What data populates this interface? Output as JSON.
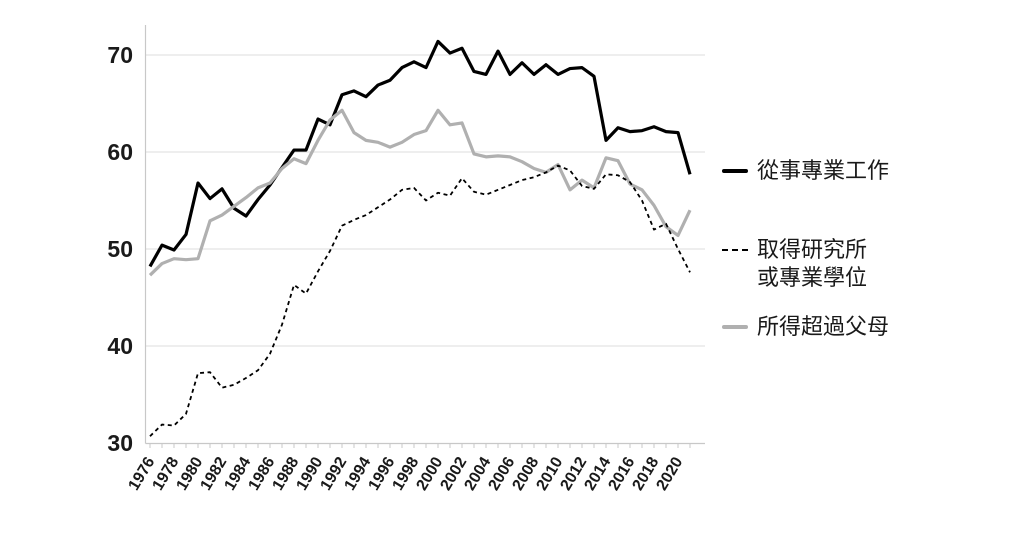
{
  "chart_data": {
    "type": "line",
    "title": "",
    "xlabel": "",
    "ylabel": "",
    "x": [
      1976,
      1977,
      1978,
      1979,
      1980,
      1981,
      1982,
      1983,
      1984,
      1985,
      1986,
      1987,
      1988,
      1989,
      1990,
      1991,
      1992,
      1993,
      1994,
      1995,
      1996,
      1997,
      1998,
      1999,
      2000,
      2001,
      2002,
      2003,
      2004,
      2005,
      2006,
      2007,
      2008,
      2009,
      2010,
      2011,
      2012,
      2013,
      2014,
      2015,
      2016,
      2017,
      2018,
      2019,
      2020,
      2021
    ],
    "x_tick_labels": [
      "1976",
      "1978",
      "1980",
      "1982",
      "1984",
      "1986",
      "1988",
      "1990",
      "1992",
      "1994",
      "1996",
      "1998",
      "2000",
      "2002",
      "2004",
      "2006",
      "2008",
      "2010",
      "2012",
      "2014",
      "2016",
      "2018",
      "2020"
    ],
    "y_ticks": [
      30,
      40,
      50,
      60,
      70
    ],
    "ylim": [
      30,
      73
    ],
    "grid": "horizontal",
    "legend_position": "right",
    "series": [
      {
        "name": "從事專業工作",
        "line": "solid",
        "color": "#000000",
        "width": 3.2,
        "values": [
          48.2,
          50.4,
          49.9,
          51.5,
          56.8,
          55.2,
          56.2,
          54.2,
          53.4,
          55.1,
          56.6,
          58.4,
          60.2,
          60.2,
          63.4,
          62.8,
          65.9,
          66.3,
          65.7,
          66.9,
          67.4,
          68.7,
          69.3,
          68.7,
          71.4,
          70.2,
          70.7,
          68.3,
          68.0,
          70.4,
          68.0,
          69.2,
          68.0,
          69.0,
          68.0,
          68.6,
          68.7,
          67.8,
          61.2,
          62.5,
          62.1,
          62.2,
          62.6,
          62.1,
          62.0,
          57.7
        ]
      },
      {
        "name": "取得研究所或專業學位",
        "line": "dashed",
        "color": "#000000",
        "width": 1.8,
        "values": [
          30.7,
          31.9,
          31.8,
          33.0,
          37.2,
          37.3,
          35.7,
          36.0,
          36.7,
          37.5,
          39.2,
          42.2,
          46.3,
          45.4,
          47.7,
          49.8,
          52.4,
          53.0,
          53.5,
          54.3,
          55.1,
          56.1,
          56.3,
          55.0,
          55.8,
          55.5,
          57.3,
          55.9,
          55.6,
          56.1,
          56.6,
          57.1,
          57.4,
          57.9,
          58.6,
          58.1,
          56.5,
          56.2,
          57.7,
          57.6,
          56.9,
          55.0,
          52.0,
          52.6,
          50.0,
          47.6
        ]
      },
      {
        "name": "所得超過父母",
        "line": "solid",
        "color": "#b0b0b0",
        "width": 3.2,
        "values": [
          47.3,
          48.5,
          49.0,
          48.9,
          49.0,
          52.9,
          53.5,
          54.4,
          55.3,
          56.3,
          56.8,
          58.3,
          59.3,
          58.8,
          61.2,
          63.3,
          64.3,
          62.0,
          61.2,
          61.0,
          60.5,
          61.0,
          61.8,
          62.2,
          64.3,
          62.8,
          63.0,
          59.8,
          59.5,
          59.6,
          59.5,
          59.0,
          58.3,
          57.9,
          58.7,
          56.1,
          57.1,
          56.3,
          59.4,
          59.1,
          56.7,
          56.1,
          54.5,
          52.3,
          51.4,
          54.0
        ]
      }
    ]
  },
  "legend": {
    "items": [
      {
        "swatch": "solid-black",
        "label_lines": [
          "從事專業工作"
        ]
      },
      {
        "swatch": "dashed-black",
        "label_lines": [
          "取得研究所",
          "或專業學位"
        ]
      },
      {
        "swatch": "solid-gray",
        "label_lines": [
          "所得超過父母"
        ]
      }
    ]
  },
  "colors": {
    "grid": "#dcdcdc",
    "axis": "#c8c8c8",
    "text": "#1a1a1a",
    "series_black": "#000000",
    "series_gray": "#b0b0b0"
  }
}
